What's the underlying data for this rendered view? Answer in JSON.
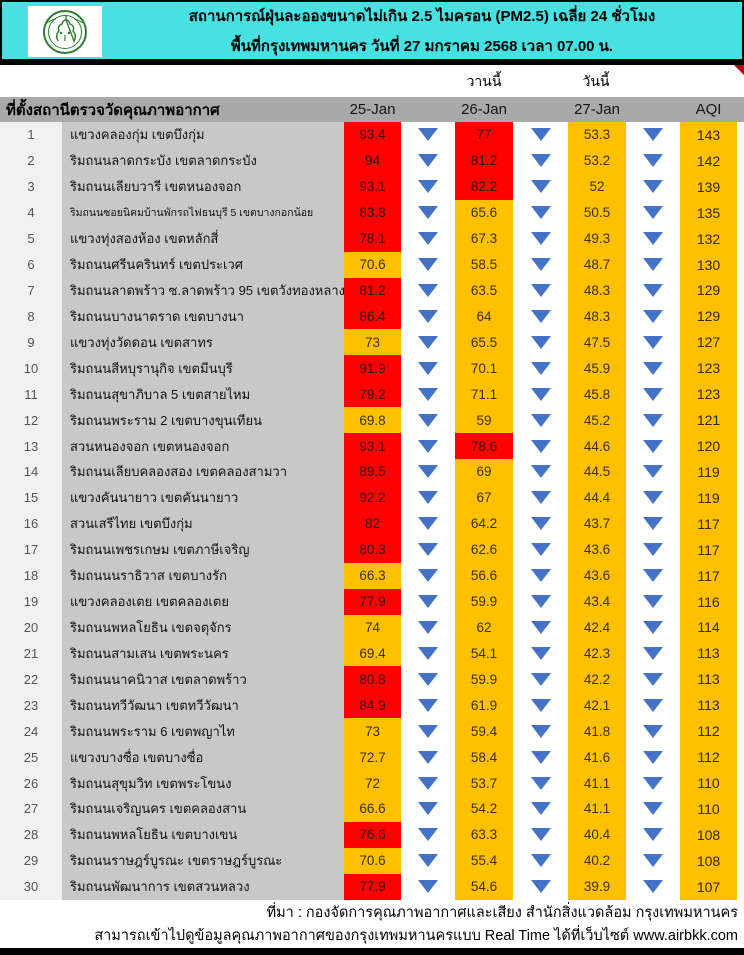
{
  "colors": {
    "banner_cyan": "#48E1E1",
    "cell_red": "#FE0000",
    "cell_amber": "#FFC000",
    "arrow_blue": "#4472C4",
    "header_gray": "#A9A9A9",
    "name_gray": "#C8C8C8",
    "red_threshold_pm25": 75
  },
  "header": {
    "logo": "bangkok-metropolitan-administration-seal",
    "title_line1": "สถานการณ์ฝุ่นละอองขนาดไม่เกิน 2.5 ไมครอน (PM2.5) เฉลี่ย 24 ชั่วโมง",
    "title_line2": "พื้นที่กรุงเทพมหานคร วันที่ 27 มกราคม 2568 เวลา 07.00 น."
  },
  "table": {
    "yesterday_label": "วานนี้",
    "today_label": "วันนี้",
    "station_header": "ที่ตั้งสถานีตรวจวัดคุณภาพอากาศ",
    "date_headers": [
      "25-Jan",
      "26-Jan",
      "27-Jan"
    ],
    "aqi_header": "AQI",
    "trend_icon": "down-arrow",
    "rows": [
      {
        "no": 1,
        "station": "แขวงคลองกุ่ม เขตบึงกุ่ม",
        "v25": 93.4,
        "v26": 77,
        "v27": 53.3,
        "aqi": 143,
        "trend": "down"
      },
      {
        "no": 2,
        "station": "ริมถนนลาดกระบัง เขตลาดกระบัง",
        "v25": 94,
        "v26": 81.2,
        "v27": 53.2,
        "aqi": 142,
        "trend": "down"
      },
      {
        "no": 3,
        "station": "ริมถนนเลียบวารี เขตหนองจอก",
        "v25": 93.1,
        "v26": 82.2,
        "v27": 52,
        "aqi": 139,
        "trend": "down"
      },
      {
        "no": 4,
        "station": "ริมถนนซอยนิคมบ้านพักรถไฟธนบุรี 5 เขตบางกอกน้อย",
        "v25": 83.8,
        "v26": 65.6,
        "v27": 50.5,
        "aqi": 135,
        "trend": "down"
      },
      {
        "no": 5,
        "station": "แขวงทุ่งสองห้อง เขตหลักสี่",
        "v25": 78.1,
        "v26": 67.3,
        "v27": 49.3,
        "aqi": 132,
        "trend": "down"
      },
      {
        "no": 6,
        "station": "ริมถนนศรีนครินทร์ เขตประเวศ",
        "v25": 70.6,
        "v26": 58.5,
        "v27": 48.7,
        "aqi": 130,
        "trend": "down"
      },
      {
        "no": 7,
        "station": "ริมถนนลาดพร้าว ซ.ลาดพร้าว 95 เขตวังทองหลาง",
        "v25": 81.2,
        "v26": 63.5,
        "v27": 48.3,
        "aqi": 129,
        "trend": "down"
      },
      {
        "no": 8,
        "station": "ริมถนนบางนาตราด เขตบางนา",
        "v25": 86.4,
        "v26": 64,
        "v27": 48.3,
        "aqi": 129,
        "trend": "down"
      },
      {
        "no": 9,
        "station": "แขวงทุ่งวัดดอน เขตสาทร",
        "v25": 73,
        "v26": 65.5,
        "v27": 47.5,
        "aqi": 127,
        "trend": "down"
      },
      {
        "no": 10,
        "station": "ริมถนนสีหบุรานุกิจ เขตมีนบุรี",
        "v25": 91.9,
        "v26": 70.1,
        "v27": 45.9,
        "aqi": 123,
        "trend": "down"
      },
      {
        "no": 11,
        "station": "ริมถนนสุขาภิบาล 5 เขตสายไหม",
        "v25": 79.2,
        "v26": 71.1,
        "v27": 45.8,
        "aqi": 123,
        "trend": "down"
      },
      {
        "no": 12,
        "station": "ริมถนนพระราม 2 เขตบางขุนเทียน",
        "v25": 69.8,
        "v26": 59,
        "v27": 45.2,
        "aqi": 121,
        "trend": "down"
      },
      {
        "no": 13,
        "station": "สวนหนองจอก เขตหนองจอก",
        "v25": 93.1,
        "v26": 78.6,
        "v27": 44.6,
        "aqi": 120,
        "trend": "down"
      },
      {
        "no": 14,
        "station": "ริมถนนเลียบคลองสอง เขตคลองสามวา",
        "v25": 89.5,
        "v26": 69,
        "v27": 44.5,
        "aqi": 119,
        "trend": "down"
      },
      {
        "no": 15,
        "station": "แขวงคันนายาว เขตคันนายาว",
        "v25": 92.2,
        "v26": 67,
        "v27": 44.4,
        "aqi": 119,
        "trend": "down"
      },
      {
        "no": 16,
        "station": "สวนเสรีไทย  เขตบึงกุ่ม",
        "v25": 82,
        "v26": 64.2,
        "v27": 43.7,
        "aqi": 117,
        "trend": "down"
      },
      {
        "no": 17,
        "station": "ริมถนนเพชรเกษม เขตภาษีเจริญ",
        "v25": 80.3,
        "v26": 62.6,
        "v27": 43.6,
        "aqi": 117,
        "trend": "down"
      },
      {
        "no": 18,
        "station": "ริมถนนนราธิวาส เขตบางรัก",
        "v25": 66.3,
        "v26": 56.6,
        "v27": 43.6,
        "aqi": 117,
        "trend": "down"
      },
      {
        "no": 19,
        "station": "แขวงคลองเตย เขตคลองเตย",
        "v25": 77.9,
        "v26": 59.9,
        "v27": 43.4,
        "aqi": 116,
        "trend": "down"
      },
      {
        "no": 20,
        "station": "ริมถนนพหลโยธิน เขตจตุจักร",
        "v25": 74,
        "v26": 62,
        "v27": 42.4,
        "aqi": 114,
        "trend": "down"
      },
      {
        "no": 21,
        "station": "ริมถนนสามเสน เขตพระนคร",
        "v25": 69.4,
        "v26": 54.1,
        "v27": 42.3,
        "aqi": 113,
        "trend": "down"
      },
      {
        "no": 22,
        "station": "ริมถนนนาคนิวาส เขตลาดพร้าว",
        "v25": 80.8,
        "v26": 59.9,
        "v27": 42.2,
        "aqi": 113,
        "trend": "down"
      },
      {
        "no": 23,
        "station": "ริมถนนทวีวัฒนา เขตทวีวัฒนา",
        "v25": 84.9,
        "v26": 61.9,
        "v27": 42.1,
        "aqi": 113,
        "trend": "down"
      },
      {
        "no": 24,
        "station": "ริมถนนพระราม 6 เขตพญาไท",
        "v25": 73,
        "v26": 59.4,
        "v27": 41.8,
        "aqi": 112,
        "trend": "down"
      },
      {
        "no": 25,
        "station": "แขวงบางซื่อ เขตบางซื่อ",
        "v25": 72.7,
        "v26": 58.4,
        "v27": 41.6,
        "aqi": 112,
        "trend": "down"
      },
      {
        "no": 26,
        "station": "ริมถนนสุขุมวิท เขตพระโขนง",
        "v25": 72,
        "v26": 53.7,
        "v27": 41.1,
        "aqi": 110,
        "trend": "down"
      },
      {
        "no": 27,
        "station": "ริมถนนเจริญนคร เขตคลองสาน",
        "v25": 66.6,
        "v26": 54.2,
        "v27": 41.1,
        "aqi": 110,
        "trend": "down"
      },
      {
        "no": 28,
        "station": "ริมถนนพหลโยธิน เขตบางเขน",
        "v25": 76.6,
        "v26": 63.3,
        "v27": 40.4,
        "aqi": 108,
        "trend": "down"
      },
      {
        "no": 29,
        "station": "ริมถนนราษฎร์บูรณะ เขตราษฎร์บูรณะ",
        "v25": 70.6,
        "v26": 55.4,
        "v27": 40.2,
        "aqi": 108,
        "trend": "down"
      },
      {
        "no": 30,
        "station": "ริมถนนพัฒนาการ เขตสวนหลวง",
        "v25": 77.9,
        "v26": 54.6,
        "v27": 39.9,
        "aqi": 107,
        "trend": "down"
      }
    ]
  },
  "footer": {
    "source_line": "ที่มา : กองจัดการคุณภาพอากาศและเสียง สำนักสิ่งแวดล้อม กรุงเทพมหานคร",
    "realtime_line": "สามารถเข้าไปดูข้อมูลคุณภาพอากาศของกรุงเทพมหานครแบบ Real Time ได้ที่เว็บไซต์ www.airbkk.com"
  }
}
